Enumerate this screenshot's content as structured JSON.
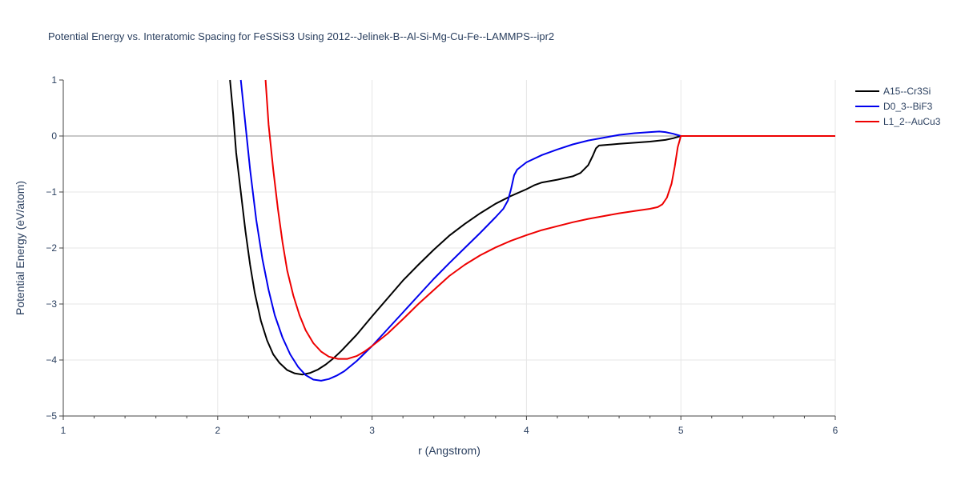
{
  "chart_data": {
    "type": "line",
    "title": "Potential Energy vs. Interatomic Spacing for FeSSiS3 Using 2012--Jelinek-B--Al-Si-Mg-Cu-Fe--LAMMPS--ipr2",
    "xlabel": "r (Angstrom)",
    "ylabel": "Potential Energy (eV/atom)",
    "xlim": [
      1,
      6
    ],
    "ylim": [
      -5,
      1
    ],
    "x_ticks": [
      1,
      2,
      3,
      4,
      5,
      6
    ],
    "x_tick_labels": [
      "1",
      "2",
      "3",
      "4",
      "5",
      "6"
    ],
    "y_ticks": [
      -5,
      -4,
      -3,
      -2,
      -1,
      0,
      1
    ],
    "y_tick_labels": [
      "−5",
      "−4",
      "−3",
      "−2",
      "−1",
      "0",
      "1"
    ],
    "grid": true,
    "legend_position": "top-right",
    "colors": {
      "text": "#2a3f5f",
      "grid": "#e6e6e6",
      "zeroline": "#c8c8c8",
      "axis": "#444444"
    },
    "series": [
      {
        "name": "A15--Cr3Si",
        "color": "#000000",
        "points": [
          [
            2.08,
            1.0
          ],
          [
            2.1,
            0.4
          ],
          [
            2.12,
            -0.3
          ],
          [
            2.15,
            -1.0
          ],
          [
            2.18,
            -1.7
          ],
          [
            2.21,
            -2.3
          ],
          [
            2.24,
            -2.8
          ],
          [
            2.28,
            -3.3
          ],
          [
            2.32,
            -3.65
          ],
          [
            2.36,
            -3.9
          ],
          [
            2.4,
            -4.05
          ],
          [
            2.45,
            -4.18
          ],
          [
            2.5,
            -4.24
          ],
          [
            2.55,
            -4.26
          ],
          [
            2.6,
            -4.23
          ],
          [
            2.65,
            -4.17
          ],
          [
            2.7,
            -4.08
          ],
          [
            2.75,
            -3.97
          ],
          [
            2.8,
            -3.84
          ],
          [
            2.9,
            -3.55
          ],
          [
            3.0,
            -3.22
          ],
          [
            3.1,
            -2.9
          ],
          [
            3.2,
            -2.58
          ],
          [
            3.3,
            -2.3
          ],
          [
            3.4,
            -2.03
          ],
          [
            3.5,
            -1.78
          ],
          [
            3.6,
            -1.57
          ],
          [
            3.7,
            -1.38
          ],
          [
            3.8,
            -1.21
          ],
          [
            3.9,
            -1.07
          ],
          [
            4.0,
            -0.95
          ],
          [
            4.05,
            -0.88
          ],
          [
            4.1,
            -0.83
          ],
          [
            4.2,
            -0.78
          ],
          [
            4.3,
            -0.72
          ],
          [
            4.35,
            -0.66
          ],
          [
            4.4,
            -0.52
          ],
          [
            4.43,
            -0.35
          ],
          [
            4.45,
            -0.22
          ],
          [
            4.47,
            -0.17
          ],
          [
            4.6,
            -0.14
          ],
          [
            4.7,
            -0.12
          ],
          [
            4.8,
            -0.1
          ],
          [
            4.9,
            -0.07
          ],
          [
            4.95,
            -0.04
          ],
          [
            5.0,
            0.0
          ],
          [
            6.0,
            0.0
          ]
        ]
      },
      {
        "name": "D0_3--BiF3",
        "color": "#0000ee",
        "points": [
          [
            2.15,
            1.0
          ],
          [
            2.18,
            0.2
          ],
          [
            2.21,
            -0.6
          ],
          [
            2.25,
            -1.5
          ],
          [
            2.29,
            -2.2
          ],
          [
            2.33,
            -2.75
          ],
          [
            2.37,
            -3.2
          ],
          [
            2.42,
            -3.6
          ],
          [
            2.47,
            -3.9
          ],
          [
            2.52,
            -4.12
          ],
          [
            2.57,
            -4.27
          ],
          [
            2.62,
            -4.35
          ],
          [
            2.67,
            -4.37
          ],
          [
            2.72,
            -4.34
          ],
          [
            2.77,
            -4.28
          ],
          [
            2.82,
            -4.2
          ],
          [
            2.9,
            -4.02
          ],
          [
            3.0,
            -3.75
          ],
          [
            3.1,
            -3.45
          ],
          [
            3.2,
            -3.15
          ],
          [
            3.3,
            -2.85
          ],
          [
            3.4,
            -2.55
          ],
          [
            3.5,
            -2.27
          ],
          [
            3.6,
            -2.0
          ],
          [
            3.7,
            -1.73
          ],
          [
            3.8,
            -1.45
          ],
          [
            3.85,
            -1.3
          ],
          [
            3.88,
            -1.15
          ],
          [
            3.9,
            -0.95
          ],
          [
            3.92,
            -0.7
          ],
          [
            3.94,
            -0.6
          ],
          [
            4.0,
            -0.47
          ],
          [
            4.1,
            -0.34
          ],
          [
            4.2,
            -0.24
          ],
          [
            4.3,
            -0.15
          ],
          [
            4.4,
            -0.08
          ],
          [
            4.5,
            -0.03
          ],
          [
            4.6,
            0.02
          ],
          [
            4.7,
            0.05
          ],
          [
            4.8,
            0.07
          ],
          [
            4.86,
            0.08
          ],
          [
            4.9,
            0.07
          ],
          [
            4.95,
            0.04
          ],
          [
            5.0,
            0.0
          ],
          [
            6.0,
            0.0
          ]
        ]
      },
      {
        "name": "L1_2--AuCu3",
        "color": "#ee0000",
        "points": [
          [
            2.31,
            1.0
          ],
          [
            2.33,
            0.2
          ],
          [
            2.36,
            -0.6
          ],
          [
            2.39,
            -1.3
          ],
          [
            2.42,
            -1.9
          ],
          [
            2.45,
            -2.4
          ],
          [
            2.49,
            -2.85
          ],
          [
            2.53,
            -3.2
          ],
          [
            2.57,
            -3.47
          ],
          [
            2.62,
            -3.7
          ],
          [
            2.67,
            -3.85
          ],
          [
            2.72,
            -3.94
          ],
          [
            2.78,
            -3.98
          ],
          [
            2.84,
            -3.98
          ],
          [
            2.9,
            -3.93
          ],
          [
            2.95,
            -3.85
          ],
          [
            3.0,
            -3.75
          ],
          [
            3.1,
            -3.53
          ],
          [
            3.2,
            -3.27
          ],
          [
            3.3,
            -3.0
          ],
          [
            3.4,
            -2.75
          ],
          [
            3.5,
            -2.5
          ],
          [
            3.6,
            -2.3
          ],
          [
            3.7,
            -2.13
          ],
          [
            3.8,
            -1.99
          ],
          [
            3.9,
            -1.87
          ],
          [
            4.0,
            -1.77
          ],
          [
            4.1,
            -1.68
          ],
          [
            4.2,
            -1.61
          ],
          [
            4.3,
            -1.54
          ],
          [
            4.4,
            -1.48
          ],
          [
            4.5,
            -1.43
          ],
          [
            4.6,
            -1.38
          ],
          [
            4.7,
            -1.34
          ],
          [
            4.8,
            -1.3
          ],
          [
            4.85,
            -1.27
          ],
          [
            4.88,
            -1.22
          ],
          [
            4.91,
            -1.1
          ],
          [
            4.94,
            -0.85
          ],
          [
            4.96,
            -0.55
          ],
          [
            4.98,
            -0.2
          ],
          [
            5.0,
            0.0
          ],
          [
            6.0,
            0.0
          ]
        ]
      }
    ]
  }
}
